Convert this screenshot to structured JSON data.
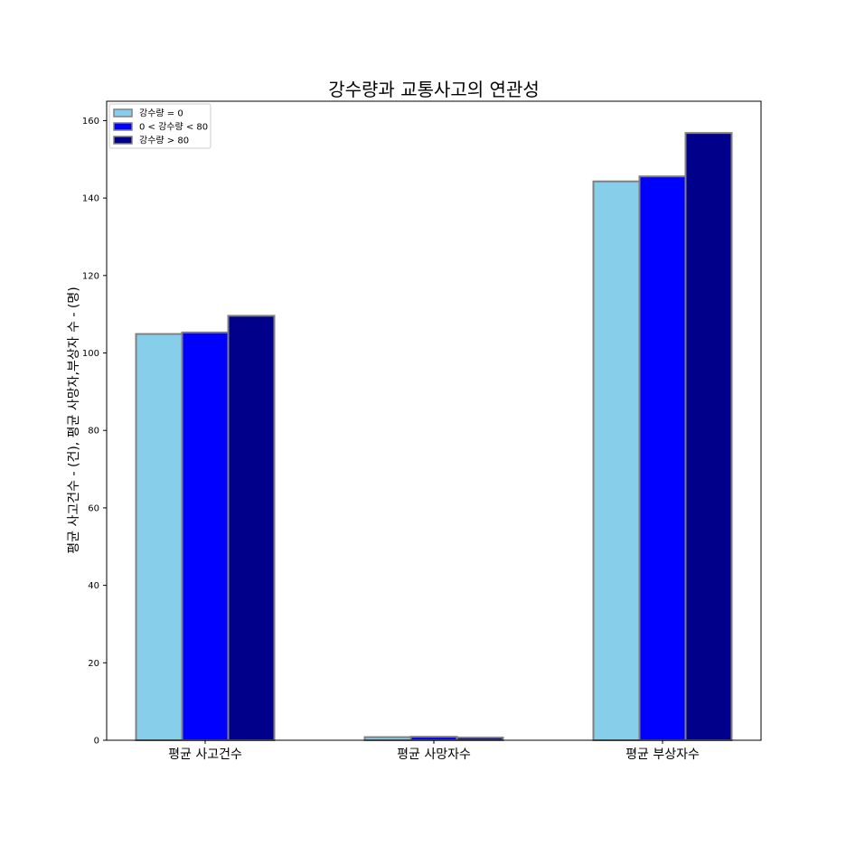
{
  "chart_data": {
    "type": "bar",
    "title": "강수량과 교통사고의 연관성",
    "xlabel": "",
    "ylabel": "평균 사고건수 - (건), 평균 사망자,부상자 수 - (명)",
    "categories": [
      "평균 사고건수",
      "평균 사망자수",
      "평균 부상자수"
    ],
    "series": [
      {
        "name": "강수량 = 0",
        "color": "#87ceeb",
        "values": [
          104.9,
          0.8,
          144.3
        ]
      },
      {
        "name": "0 < 강수량 < 80",
        "color": "#0000ff",
        "values": [
          105.3,
          0.9,
          145.6
        ]
      },
      {
        "name": "강수량 > 80",
        "color": "#00008b",
        "values": [
          109.6,
          0.7,
          156.8
        ]
      }
    ],
    "ylim": [
      0,
      165
    ],
    "yticks": [
      0,
      20,
      40,
      60,
      80,
      100,
      120,
      140,
      160
    ],
    "edge_color": "#808080",
    "legend_position": "upper-left",
    "grid": false
  }
}
